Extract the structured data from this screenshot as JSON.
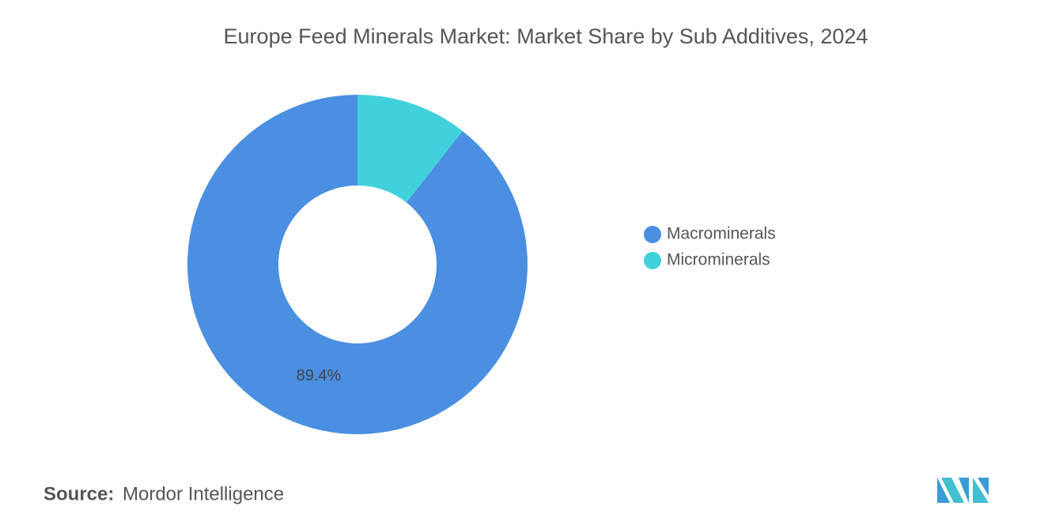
{
  "chart_data": {
    "type": "donut",
    "title": "Europe Feed Minerals Market: Market Share by Sub Additives, 2024",
    "categories": [
      "Macrominerals",
      "Microminerals"
    ],
    "values": [
      89.4,
      10.6
    ],
    "value_labels": [
      "89.4%",
      null
    ],
    "colors": [
      "#4a8fe2",
      "#40d1dc"
    ],
    "legend": "right",
    "source_label": "Source:",
    "source": "Mordor Intelligence"
  }
}
